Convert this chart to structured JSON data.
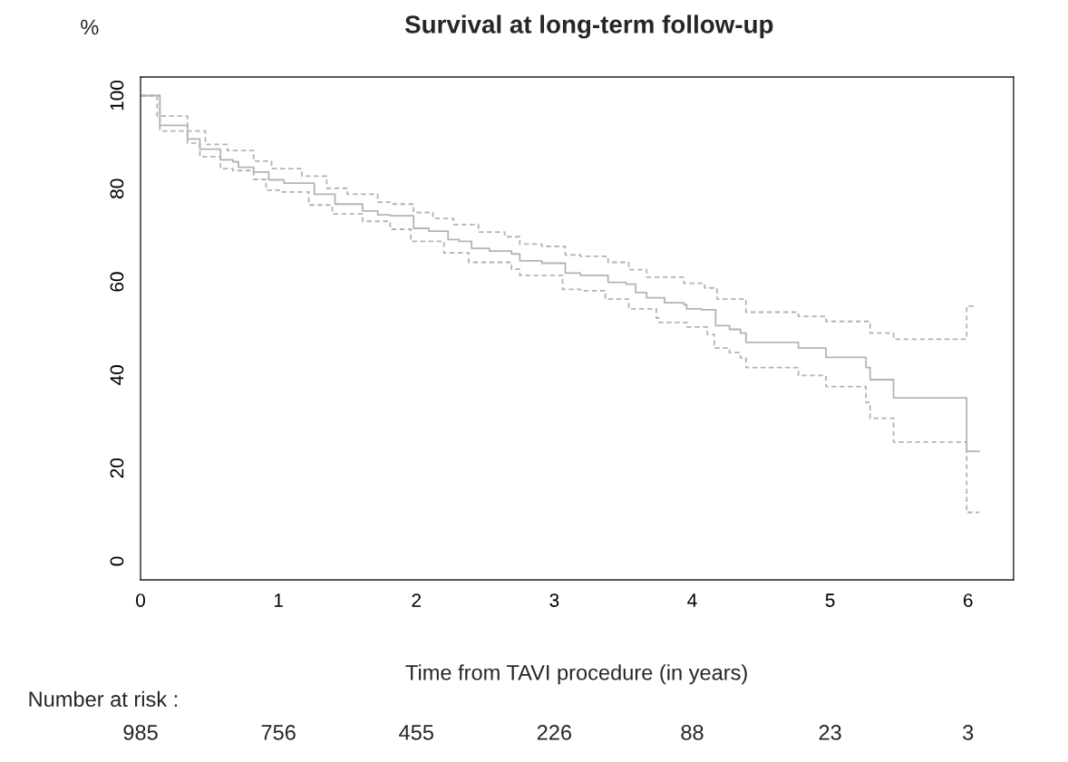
{
  "chart_data": {
    "type": "step",
    "title": "Survival at long-term follow-up",
    "xlabel": "Time from TAVI procedure (in years)",
    "ylabel": "%",
    "xlim": [
      0,
      6.33
    ],
    "ylim": [
      -4,
      104
    ],
    "xticks": [
      0,
      1,
      2,
      3,
      4,
      5,
      6
    ],
    "yticks": [
      0,
      20,
      40,
      60,
      80,
      100
    ],
    "grid": false,
    "legend": false,
    "series": [
      {
        "color": "#b4b4b4",
        "line_style": "solid",
        "x": [
          0,
          0.14,
          0.34,
          0.43,
          0.58,
          0.67,
          0.71,
          0.82,
          0.93,
          1.04,
          1.26,
          1.41,
          1.61,
          1.72,
          1.81,
          1.98,
          2.09,
          2.23,
          2.31,
          2.4,
          2.53,
          2.69,
          2.75,
          2.91,
          3.08,
          3.19,
          3.39,
          3.52,
          3.59,
          3.67,
          3.8,
          3.94,
          3.96,
          4.07,
          4.17,
          4.27,
          4.35,
          4.39,
          4.77,
          4.97,
          5.26,
          5.29,
          5.46,
          5.99,
          6.08
        ],
        "values": [
          100,
          93.6,
          90.7,
          88.5,
          86.2,
          85.8,
          84.6,
          83.6,
          81.9,
          81.2,
          78.8,
          76.7,
          75.2,
          74.4,
          74.2,
          71.5,
          70.9,
          69.1,
          68.7,
          67.2,
          66.6,
          66.0,
          64.5,
          64.0,
          61.9,
          61.4,
          59.9,
          59.5,
          57.7,
          56.6,
          55.5,
          55.1,
          54.2,
          54.0,
          50.6,
          49.8,
          49.0,
          47.0,
          45.8,
          43.8,
          41.6,
          39.0,
          35.1,
          23.6,
          23.6
        ]
      },
      {
        "color": "#b4b4b4",
        "line_style": "dashed",
        "x": [
          0,
          0.12,
          0.34,
          0.47,
          0.63,
          0.82,
          0.95,
          1.17,
          1.35,
          1.5,
          1.72,
          1.83,
          1.98,
          2.12,
          2.27,
          2.45,
          2.64,
          2.75,
          2.91,
          3.08,
          3.19,
          3.39,
          3.54,
          3.67,
          3.94,
          4.09,
          4.18,
          4.39,
          4.77,
          4.97,
          5.29,
          5.46,
          5.99,
          6.05
        ],
        "values": [
          100,
          95.6,
          92.4,
          89.5,
          88.2,
          85.9,
          84.3,
          82.7,
          80.1,
          78.8,
          77.1,
          76.7,
          74.9,
          73.6,
          72.3,
          70.7,
          69.7,
          68.1,
          67.6,
          65.8,
          65.5,
          64.2,
          62.6,
          61.0,
          59.7,
          58.7,
          56.3,
          53.5,
          52.6,
          51.5,
          49.0,
          47.7,
          54.8,
          54.8
        ]
      },
      {
        "color": "#b4b4b4",
        "line_style": "dashed",
        "x": [
          0,
          0.14,
          0.34,
          0.43,
          0.58,
          0.67,
          0.82,
          0.91,
          1.02,
          1.22,
          1.39,
          1.61,
          1.81,
          1.96,
          2.2,
          2.38,
          2.69,
          2.75,
          3.06,
          3.19,
          3.37,
          3.54,
          3.74,
          3.76,
          3.96,
          4.11,
          4.16,
          4.27,
          4.35,
          4.39,
          4.77,
          4.97,
          5.26,
          5.29,
          5.46,
          5.99,
          6.08
        ],
        "values": [
          100,
          92.4,
          89.8,
          86.9,
          84.3,
          83.9,
          82.0,
          79.7,
          79.3,
          76.5,
          74.6,
          73.0,
          71.3,
          68.7,
          66.2,
          64.2,
          62.7,
          61.4,
          58.4,
          58.1,
          56.3,
          54.2,
          52.2,
          51.3,
          50.3,
          48.7,
          45.8,
          44.8,
          43.7,
          41.6,
          39.9,
          37.5,
          34.1,
          30.7,
          25.6,
          10.5,
          10.5
        ]
      }
    ],
    "annotations": [
      "Number at risk :",
      "985",
      "756",
      "455",
      "226",
      "88",
      "23",
      "3"
    ]
  }
}
